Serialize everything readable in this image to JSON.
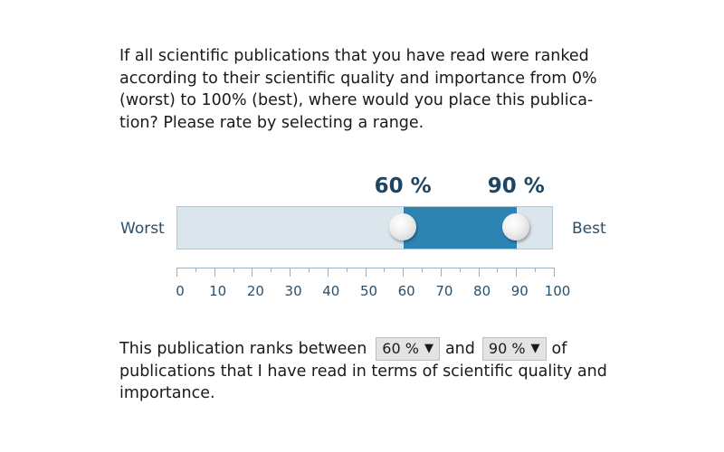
{
  "question": {
    "lines": [
      "If all scientific publications that you have read were ranked",
      "according to their scientific quality and importance from 0%",
      "(worst) to 100% (best), where would you place this publica-",
      "tion? Please rate by selecting a range."
    ]
  },
  "slider": {
    "min_label": "Worst",
    "max_label": "Best",
    "low_value": 60,
    "high_value": 90,
    "low_label": "60 %",
    "high_label": "90 %",
    "scale_min": 0,
    "scale_max": 100,
    "tick_labels": [
      "0",
      "10",
      "20",
      "30",
      "40",
      "50",
      "60",
      "70",
      "80",
      "90",
      "100"
    ],
    "track_color": "#dbe5ec",
    "fill_color": "#2d84b3"
  },
  "answer": {
    "prefix": "This publication ranks between",
    "low_select": "60 %",
    "connector": "and",
    "high_select": "90 %",
    "suffix": "of",
    "line2": "publications that I have read in terms of scientific quality and",
    "line3": "importance."
  }
}
